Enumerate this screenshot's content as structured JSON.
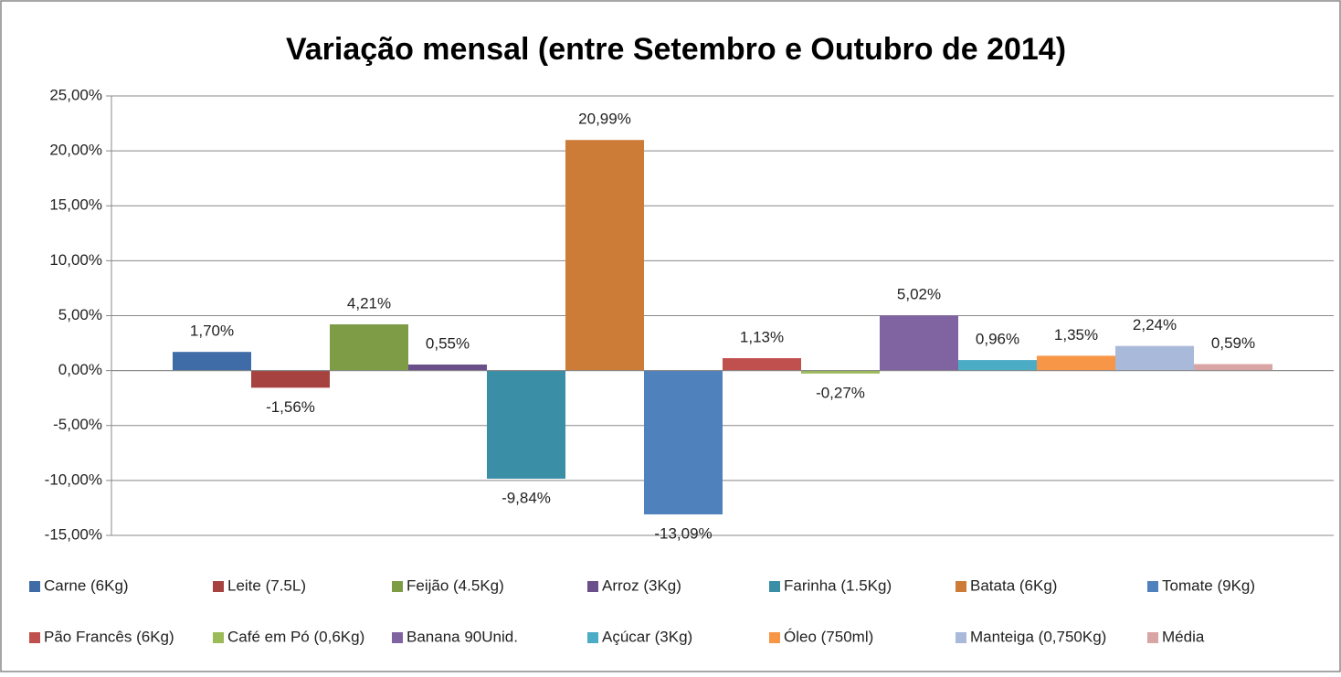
{
  "chart_data": {
    "type": "bar",
    "title": "Variação mensal (entre Setembro e Outubro de 2014)",
    "categories": [
      null
    ],
    "ylim": [
      -15,
      25
    ],
    "yticks": [
      {
        "value": -15,
        "label": "-15,00%"
      },
      {
        "value": -10,
        "label": "-10,00%"
      },
      {
        "value": -5,
        "label": "-5,00%"
      },
      {
        "value": 0,
        "label": "0,00%"
      },
      {
        "value": 5,
        "label": "5,00%"
      },
      {
        "value": 10,
        "label": "10,00%"
      },
      {
        "value": 15,
        "label": "15,00%"
      },
      {
        "value": 20,
        "label": "20,00%"
      },
      {
        "value": 25,
        "label": "25,00%"
      }
    ],
    "grid": true,
    "legend": "bottom",
    "series": [
      {
        "name": "Carne (6Kg)",
        "color": "#3F6CA6",
        "values": [
          1.7
        ],
        "value_labels": [
          "1,70%"
        ]
      },
      {
        "name": "Leite (7.5L)",
        "color": "#A64340",
        "values": [
          -1.56
        ],
        "value_labels": [
          "-1,56%"
        ]
      },
      {
        "name": "Feijão (4.5Kg)",
        "color": "#7E9B46",
        "values": [
          4.21
        ],
        "value_labels": [
          "4,21%"
        ]
      },
      {
        "name": "Arroz (3Kg)",
        "color": "#6A4F8A",
        "values": [
          0.55
        ],
        "value_labels": [
          "0,55%"
        ]
      },
      {
        "name": "Farinha (1.5Kg)",
        "color": "#3A8EA5",
        "values": [
          -9.84
        ],
        "value_labels": [
          "-9,84%"
        ]
      },
      {
        "name": "Batata (6Kg)",
        "color": "#CD7C38",
        "values": [
          20.99
        ],
        "value_labels": [
          "20,99%"
        ]
      },
      {
        "name": "Tomate (9Kg)",
        "color": "#4F81BD",
        "values": [
          -13.09
        ],
        "value_labels": [
          "-13,09%"
        ]
      },
      {
        "name": "Pão Francês (6Kg)",
        "color": "#C0504D",
        "values": [
          1.13
        ],
        "value_labels": [
          "1,13%"
        ]
      },
      {
        "name": "Café em Pó (0,6Kg)",
        "color": "#9BBB59",
        "values": [
          -0.27
        ],
        "value_labels": [
          "-0,27%"
        ]
      },
      {
        "name": "Banana 90Unid.",
        "color": "#8064A2",
        "values": [
          5.02
        ],
        "value_labels": [
          "5,02%"
        ]
      },
      {
        "name": "Açúcar (3Kg)",
        "color": "#4BACC6",
        "values": [
          0.96
        ],
        "value_labels": [
          "0,96%"
        ]
      },
      {
        "name": "Óleo (750ml)",
        "color": "#F79646",
        "values": [
          1.35
        ],
        "value_labels": [
          "1,35%"
        ]
      },
      {
        "name": "Manteiga (0,750Kg)",
        "color": "#A9B9DA",
        "values": [
          2.24
        ],
        "value_labels": [
          "2,24%"
        ]
      },
      {
        "name": "Média",
        "color": "#D9A5A4",
        "values": [
          0.59
        ],
        "value_labels": [
          "0,59%"
        ]
      }
    ]
  }
}
